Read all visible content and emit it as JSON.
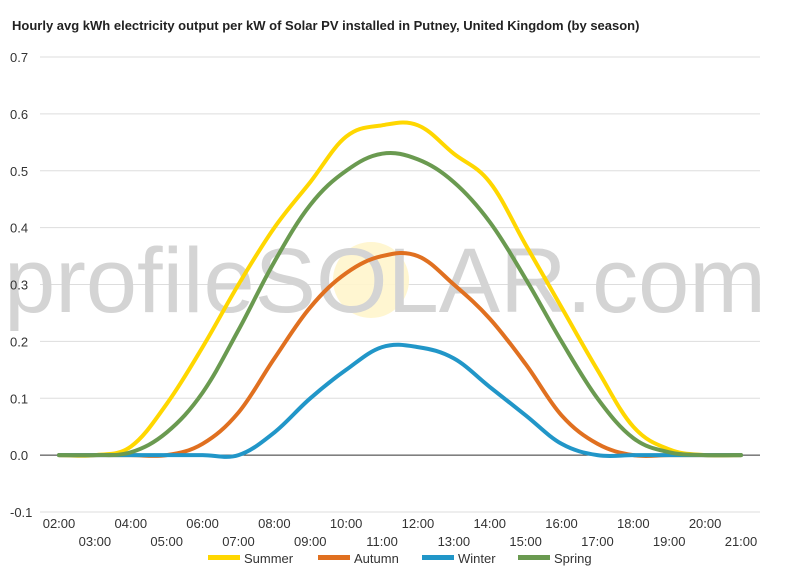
{
  "chart_data": {
    "type": "line",
    "title": "Hourly avg kWh electricity output per kW of Solar PV installed in Putney, United Kingdom (by season)",
    "xlabel": "",
    "ylabel": "",
    "ylim": [
      -0.1,
      0.7
    ],
    "yticks": [
      "-0.1",
      "0.0",
      "0.1",
      "0.2",
      "0.3",
      "0.4",
      "0.5",
      "0.6",
      "0.7"
    ],
    "x_labels_upper": [
      "02:00",
      "04:00",
      "06:00",
      "08:00",
      "10:00",
      "12:00",
      "14:00",
      "16:00",
      "18:00",
      "20:00"
    ],
    "x_labels_lower": [
      "03:00",
      "05:00",
      "07:00",
      "09:00",
      "11:00",
      "13:00",
      "15:00",
      "17:00",
      "19:00",
      "21:00"
    ],
    "x": [
      2,
      3,
      4,
      5,
      6,
      7,
      8,
      9,
      10,
      11,
      12,
      13,
      14,
      15,
      16,
      17,
      18,
      19,
      20,
      21
    ],
    "grid": true,
    "legend_position": "bottom",
    "watermark": "profileSOLAR.com",
    "series": [
      {
        "name": "Summer",
        "color": "#ffd700",
        "values": [
          0.0,
          0.0,
          0.015,
          0.09,
          0.19,
          0.3,
          0.4,
          0.48,
          0.56,
          0.58,
          0.58,
          0.53,
          0.48,
          0.37,
          0.26,
          0.15,
          0.05,
          0.01,
          0.0,
          0.0
        ]
      },
      {
        "name": "Autumn",
        "color": "#e07020",
        "values": [
          0.0,
          0.0,
          0.0,
          0.0,
          0.02,
          0.075,
          0.17,
          0.26,
          0.32,
          0.35,
          0.35,
          0.3,
          0.24,
          0.16,
          0.07,
          0.02,
          0.0,
          0.0,
          0.0,
          0.0
        ]
      },
      {
        "name": "Winter",
        "color": "#2196c8",
        "values": [
          0.0,
          0.0,
          0.0,
          0.0,
          0.0,
          0.0,
          0.04,
          0.1,
          0.15,
          0.19,
          0.19,
          0.17,
          0.12,
          0.07,
          0.02,
          0.0,
          0.0,
          0.0,
          0.0,
          0.0
        ]
      },
      {
        "name": "Spring",
        "color": "#6a9a50",
        "values": [
          0.0,
          0.0,
          0.005,
          0.04,
          0.11,
          0.22,
          0.34,
          0.44,
          0.5,
          0.53,
          0.52,
          0.48,
          0.41,
          0.31,
          0.2,
          0.1,
          0.03,
          0.005,
          0.0,
          0.0
        ]
      }
    ]
  }
}
